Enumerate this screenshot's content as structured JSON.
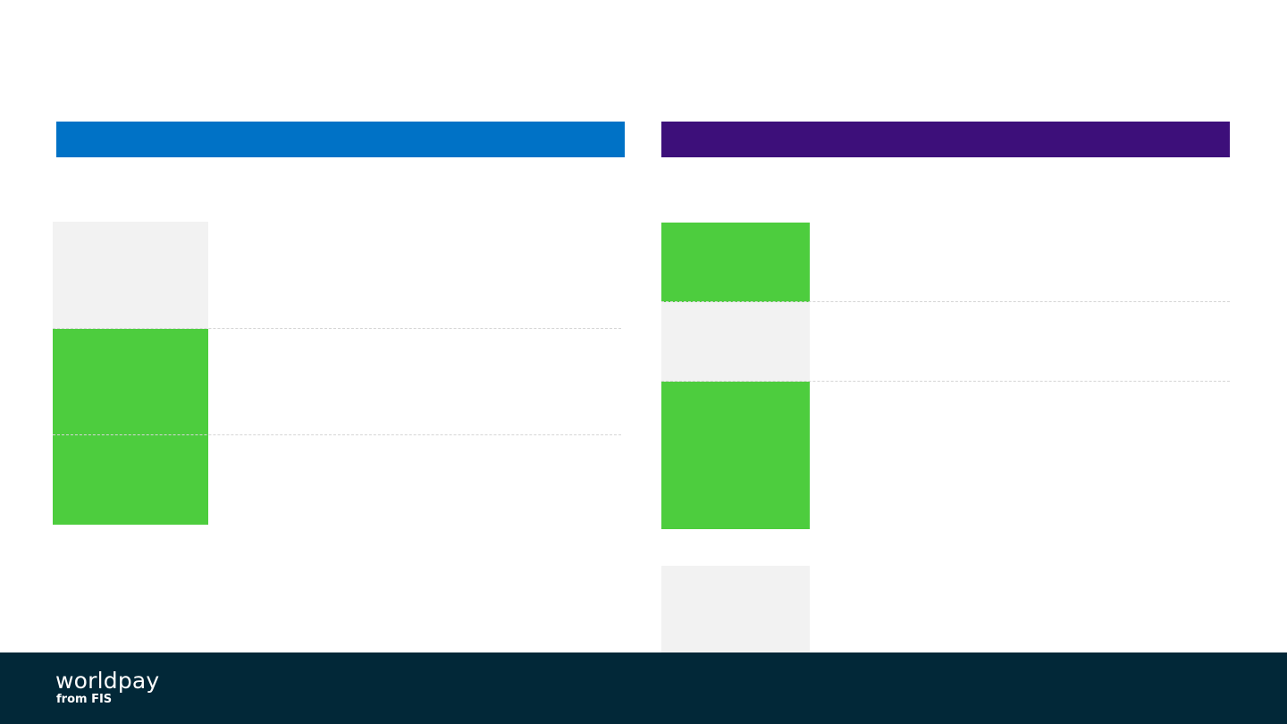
{
  "colors": {
    "left_header": "#0072c6",
    "right_header": "#3d0f7a",
    "green_block": "#4dcd3e",
    "grey_block": "#f2f2f2",
    "footer_bg": "#022838"
  },
  "footer": {
    "logo_word": "worldpay",
    "logo_sub": "from FIS"
  }
}
